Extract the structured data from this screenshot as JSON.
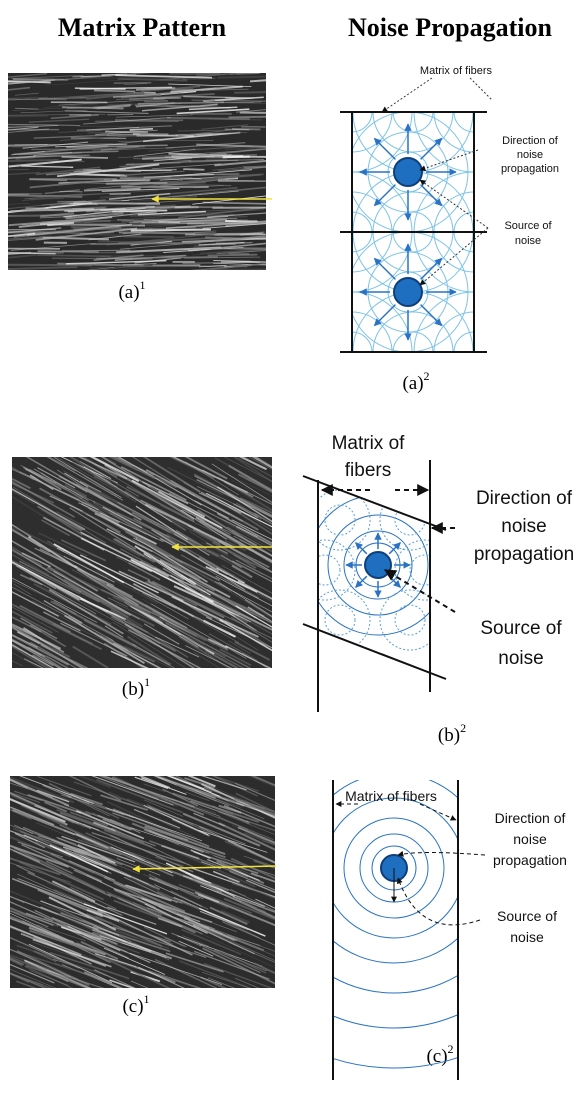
{
  "header": {
    "left_title": "Matrix Pattern",
    "right_title": "Noise Propagation"
  },
  "panels": [
    {
      "pattern_caption": {
        "letter": "(a)",
        "superscript": "1"
      },
      "diagram_caption": {
        "letter": "(a)",
        "superscript": "2"
      },
      "labels": {
        "matrix": [
          "Matrix of fibers"
        ],
        "direction": [
          "Direction of",
          "noise",
          "propagation"
        ],
        "source": [
          "Source of",
          "noise"
        ]
      }
    },
    {
      "pattern_caption": {
        "letter": "(b)",
        "superscript": "1"
      },
      "diagram_caption": {
        "letter": "(b)",
        "superscript": "2"
      },
      "labels": {
        "matrix": [
          "Matrix of",
          "fibers"
        ],
        "direction": [
          "Direction of",
          "noise",
          "propagation"
        ],
        "source": [
          "Source of",
          "noise"
        ]
      }
    },
    {
      "pattern_caption": {
        "letter": "(c)",
        "superscript": "1"
      },
      "diagram_caption": {
        "letter": "(c)",
        "superscript": "2"
      },
      "labels": {
        "matrix": [
          "Matrix of fibers"
        ],
        "direction": [
          "Direction of",
          "noise",
          "propagation"
        ],
        "source": [
          "Source of",
          "noise"
        ]
      }
    }
  ]
}
